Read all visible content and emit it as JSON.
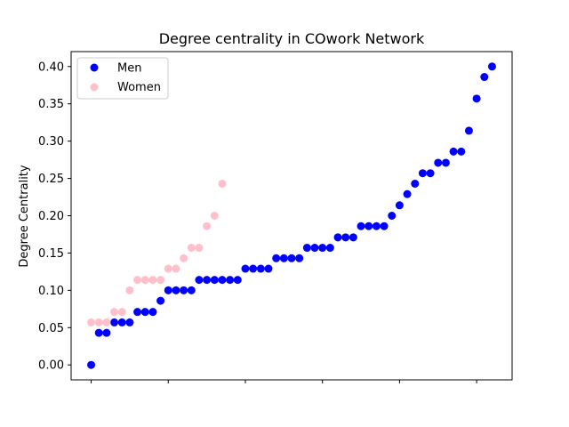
{
  "chart_data": {
    "type": "scatter",
    "title": "Degree centrality in COwork Network",
    "xlabel": "",
    "ylabel": "Degree Centrality",
    "xlim": [
      -2.6,
      54.6
    ],
    "ylim": [
      -0.02,
      0.42
    ],
    "yticks": [
      0.0,
      0.05,
      0.1,
      0.15,
      0.2,
      0.25,
      0.3,
      0.35,
      0.4
    ],
    "ytick_labels": [
      "0.00",
      "0.05",
      "0.10",
      "0.15",
      "0.20",
      "0.25",
      "0.30",
      "0.35",
      "0.40"
    ],
    "xticks": [
      0,
      10,
      20,
      30,
      40,
      50
    ],
    "xtick_labels": [
      "",
      "",
      "",
      "",
      "",
      ""
    ],
    "grid": false,
    "legend_position": "top-left",
    "series": [
      {
        "name": "Men",
        "color": "#0000ff",
        "x": [
          0,
          1,
          2,
          3,
          4,
          5,
          6,
          7,
          8,
          9,
          10,
          11,
          12,
          13,
          14,
          15,
          16,
          17,
          18,
          19,
          20,
          21,
          22,
          23,
          24,
          25,
          26,
          27,
          28,
          29,
          30,
          31,
          32,
          33,
          34,
          35,
          36,
          37,
          38,
          39,
          40,
          41,
          42,
          43,
          44,
          45,
          46,
          47,
          48,
          49,
          50,
          51,
          52
        ],
        "y": [
          0.0,
          0.043,
          0.043,
          0.057,
          0.057,
          0.057,
          0.071,
          0.071,
          0.071,
          0.086,
          0.1,
          0.1,
          0.1,
          0.1,
          0.114,
          0.114,
          0.114,
          0.114,
          0.114,
          0.114,
          0.129,
          0.129,
          0.129,
          0.129,
          0.143,
          0.143,
          0.143,
          0.143,
          0.157,
          0.157,
          0.157,
          0.157,
          0.171,
          0.171,
          0.171,
          0.186,
          0.186,
          0.186,
          0.186,
          0.2,
          0.214,
          0.229,
          0.243,
          0.257,
          0.257,
          0.271,
          0.271,
          0.286,
          0.286,
          0.314,
          0.357,
          0.386,
          0.4
        ]
      },
      {
        "name": "Women",
        "color": "#ffc0cb",
        "x": [
          0,
          1,
          2,
          3,
          4,
          5,
          6,
          7,
          8,
          9,
          10,
          11,
          12,
          13,
          14,
          15,
          16,
          17
        ],
        "y": [
          0.057,
          0.057,
          0.057,
          0.071,
          0.071,
          0.1,
          0.114,
          0.114,
          0.114,
          0.114,
          0.129,
          0.129,
          0.143,
          0.157,
          0.157,
          0.186,
          0.2,
          0.243
        ]
      }
    ]
  }
}
